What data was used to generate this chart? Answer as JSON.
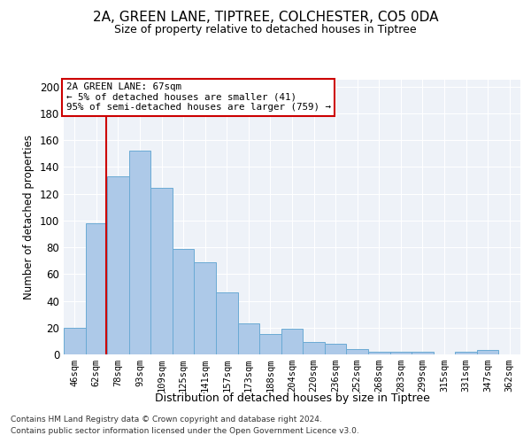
{
  "title_line1": "2A, GREEN LANE, TIPTREE, COLCHESTER, CO5 0DA",
  "title_line2": "Size of property relative to detached houses in Tiptree",
  "xlabel": "Distribution of detached houses by size in Tiptree",
  "ylabel": "Number of detached properties",
  "categories": [
    "46sqm",
    "62sqm",
    "78sqm",
    "93sqm",
    "109sqm",
    "125sqm",
    "141sqm",
    "157sqm",
    "173sqm",
    "188sqm",
    "204sqm",
    "220sqm",
    "236sqm",
    "252sqm",
    "268sqm",
    "283sqm",
    "299sqm",
    "315sqm",
    "331sqm",
    "347sqm",
    "362sqm"
  ],
  "values": [
    20,
    98,
    133,
    152,
    124,
    79,
    69,
    46,
    23,
    15,
    19,
    9,
    8,
    4,
    2,
    2,
    2,
    0,
    2,
    3,
    0
  ],
  "bar_color": "#adc9e8",
  "bar_edge_color": "#6aaad4",
  "ylim": [
    0,
    205
  ],
  "yticks": [
    0,
    20,
    40,
    60,
    80,
    100,
    120,
    140,
    160,
    180,
    200
  ],
  "annotation_line1": "2A GREEN LANE: 67sqm",
  "annotation_line2": "← 5% of detached houses are smaller (41)",
  "annotation_line3": "95% of semi-detached houses are larger (759) →",
  "vline_x": 1.45,
  "box_color": "#cc0000",
  "footer_line1": "Contains HM Land Registry data © Crown copyright and database right 2024.",
  "footer_line2": "Contains public sector information licensed under the Open Government Licence v3.0.",
  "background_color": "#eef2f8"
}
